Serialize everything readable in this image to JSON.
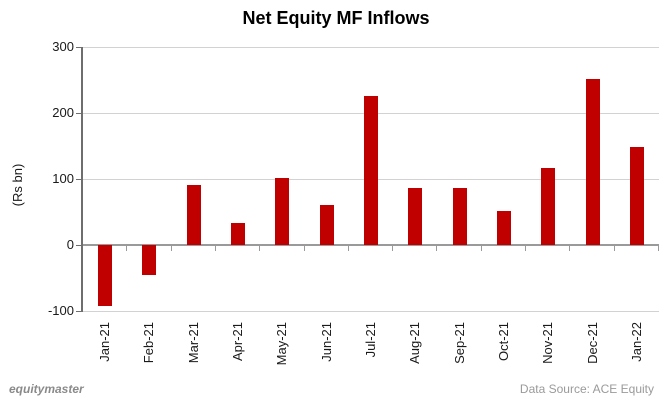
{
  "chart_data": {
    "type": "bar",
    "title": "Net Equity MF Inflows",
    "ylabel": "(Rs bn)",
    "xlabel": "",
    "categories": [
      "Jan-21",
      "Feb-21",
      "Mar-21",
      "Apr-21",
      "May-21",
      "Jun-21",
      "Jul-21",
      "Aug-21",
      "Sep-21",
      "Oct-21",
      "Nov-21",
      "Dec-21",
      "Jan-22"
    ],
    "values": [
      -92,
      -45,
      91,
      34,
      101,
      60,
      226,
      87,
      87,
      52,
      116,
      251,
      149
    ],
    "ylim": [
      -100,
      300
    ],
    "yticks": [
      300,
      200,
      100,
      0,
      -100
    ],
    "grid": true,
    "legend": false,
    "bar_color": "#c00000"
  },
  "colors": {
    "bar": "#c00000",
    "gridline": "#d2d2d2",
    "zero_axis": "#9a9a9a",
    "y_axis": "#6e6e6e",
    "title_text": "#000000",
    "tick_text": "#1a1a1a",
    "footer_text": "#8a8a8a"
  },
  "footer": {
    "brand": "equitymaster",
    "data_source": "Data Source: ACE Equity"
  }
}
